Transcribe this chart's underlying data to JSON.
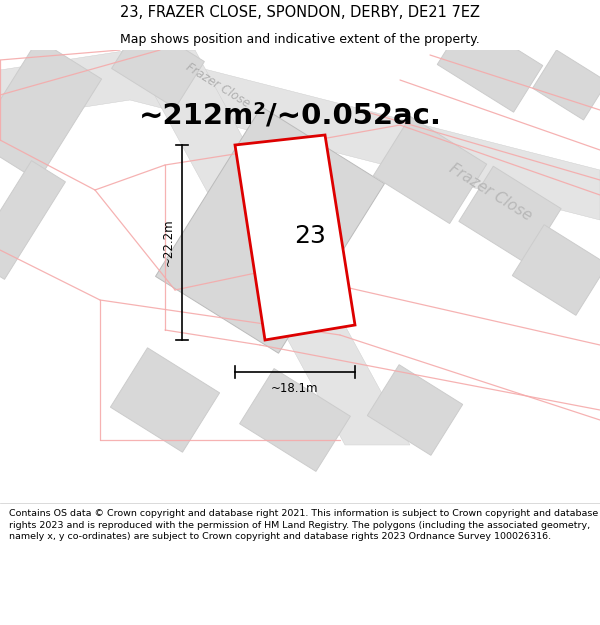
{
  "title": "23, FRAZER CLOSE, SPONDON, DERBY, DE21 7EZ",
  "subtitle": "Map shows position and indicative extent of the property.",
  "area_text": "~212m²/~0.052ac.",
  "width_label": "~18.1m",
  "height_label": "~22.2m",
  "number_label": "23",
  "property_stroke": "#dd0000",
  "footer_text": "Contains OS data © Crown copyright and database right 2021. This information is subject to Crown copyright and database rights 2023 and is reproduced with the permission of HM Land Registry. The polygons (including the associated geometry, namely x, y co-ordinates) are subject to Crown copyright and database rights 2023 Ordnance Survey 100026316.",
  "title_fontsize": 10.5,
  "subtitle_fontsize": 9,
  "area_fontsize": 21,
  "label_fontsize": 8.5,
  "number_fontsize": 18,
  "footer_fontsize": 6.8,
  "bldg_fill": "#d8d8d8",
  "bldg_ec": "#cccccc",
  "pink": "#f5aaaa",
  "road_fill": "#e8e8e8"
}
